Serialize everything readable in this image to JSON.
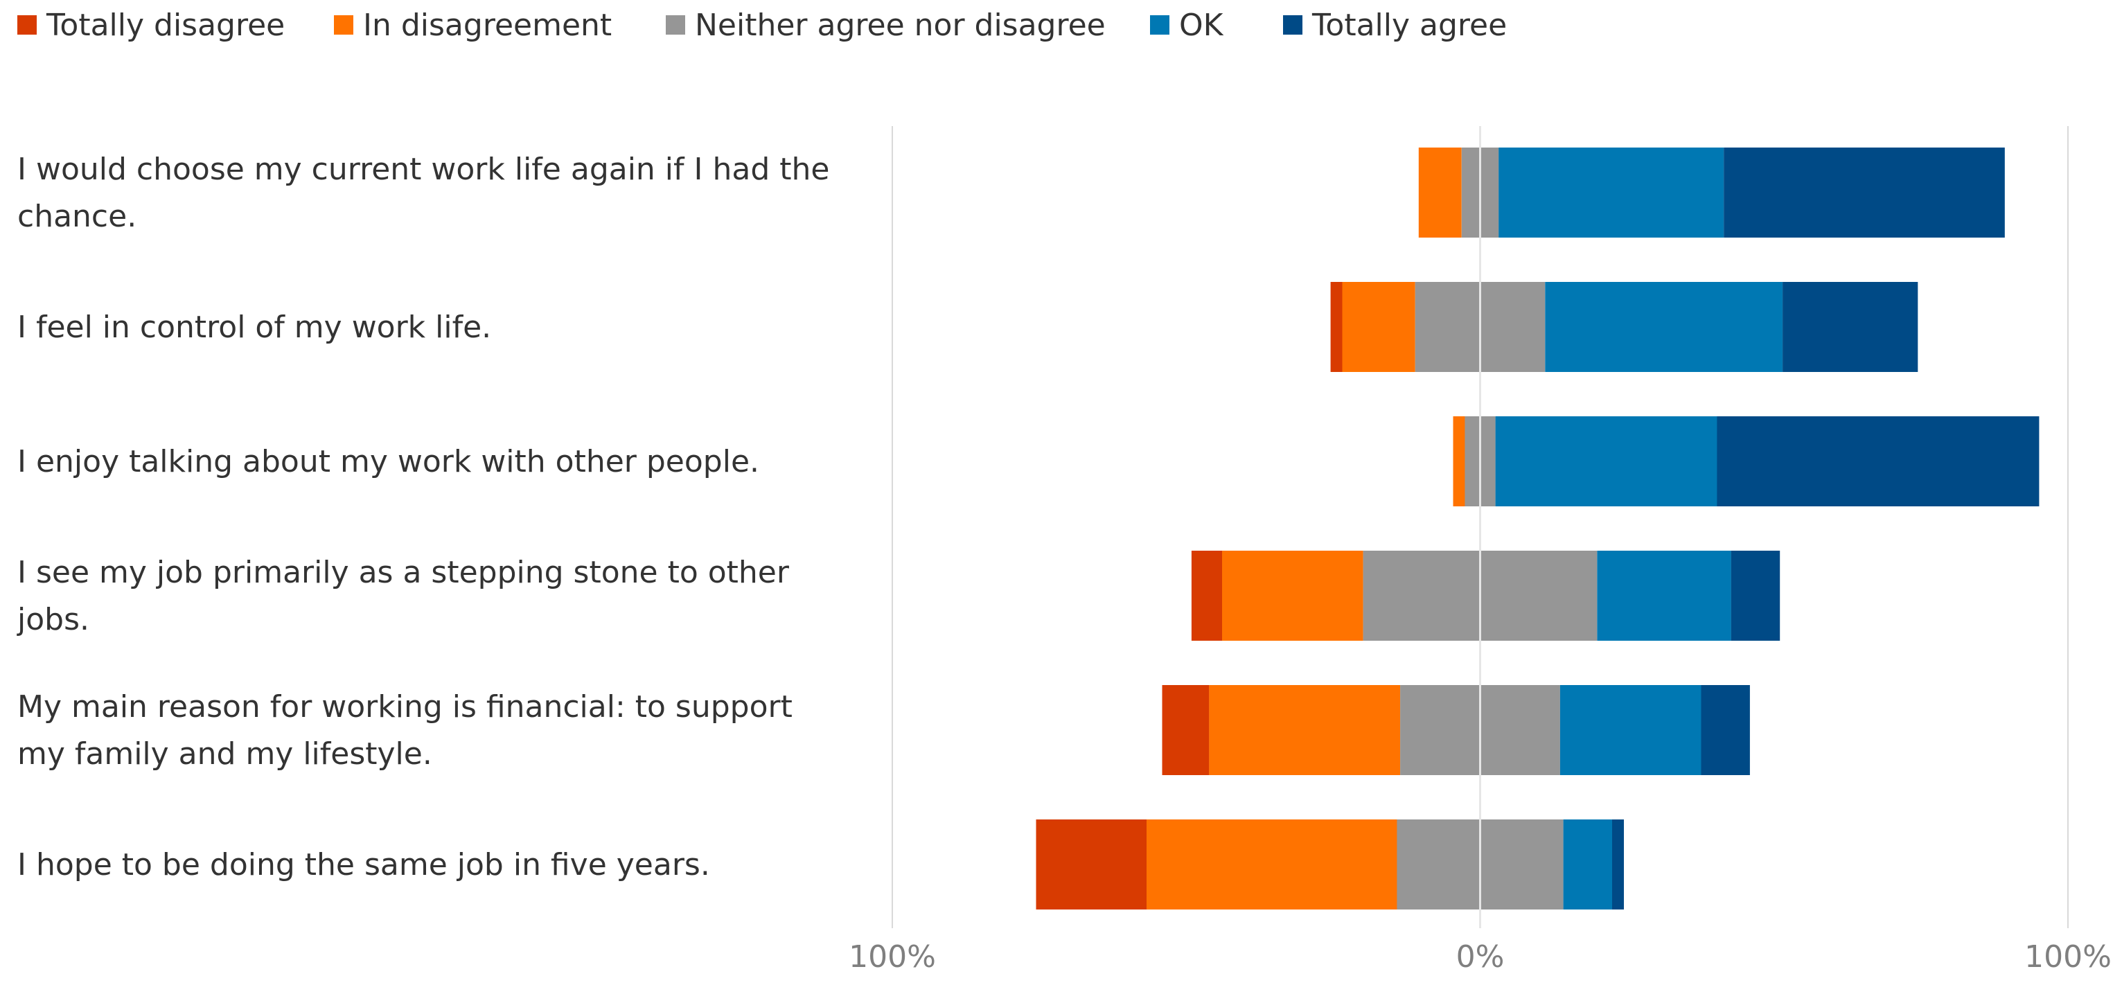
{
  "chart_data": {
    "type": "bar",
    "orientation": "horizontal",
    "layout": "diverging-stacked",
    "title": "",
    "xlabel": "",
    "ylabel": "",
    "xlim": [
      -100,
      100
    ],
    "x_tick_labels": [
      "100%",
      "0%",
      "100%"
    ],
    "grid": true,
    "legend_position": "top-left",
    "series": [
      {
        "name": "Totally disagree",
        "color": "#D83B01"
      },
      {
        "name": "In disagreement",
        "color": "#FF7300"
      },
      {
        "name": "Neither agree nor disagree",
        "color": "#969696"
      },
      {
        "name": "OK",
        "color": "#0078B3"
      },
      {
        "name": "Totally agree",
        "color": "#004A86"
      }
    ],
    "categories": [
      {
        "label_lines": [
          "I would choose my current work life again if I had the",
          "chance."
        ],
        "values": [
          0,
          7.3,
          6.3,
          38.3,
          47.8
        ]
      },
      {
        "label_lines": [
          "I feel in control of my work life."
        ],
        "values": [
          2.0,
          12.4,
          22.1,
          40.4,
          23.0
        ]
      },
      {
        "label_lines": [
          "I enjoy talking about my work with other people."
        ],
        "values": [
          0,
          2.0,
          5.2,
          37.7,
          54.8
        ]
      },
      {
        "label_lines": [
          "I see my job primarily as a stepping stone to other",
          "jobs."
        ],
        "values": [
          5.2,
          24.0,
          39.8,
          22.8,
          8.3
        ]
      },
      {
        "label_lines": [
          "My main reason for working is financial: to support",
          "my family and my lifestyle."
        ],
        "values": [
          8.0,
          32.5,
          27.2,
          24.0,
          8.3
        ]
      },
      {
        "label_lines": [
          "I hope to be doing the same job in five years."
        ],
        "values": [
          18.8,
          42.6,
          28.3,
          8.3,
          2.0
        ]
      }
    ]
  }
}
